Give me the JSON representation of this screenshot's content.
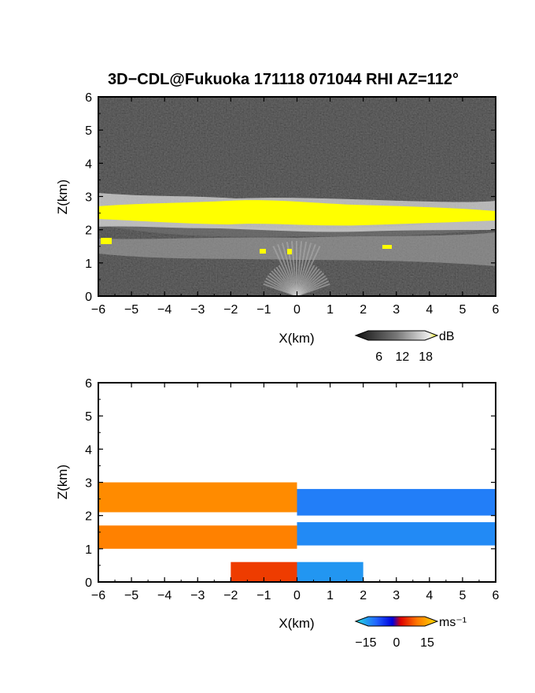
{
  "chart_data": [
    {
      "type": "heatmap",
      "title": "3D−CDL@Fukuoka 171118 071044 RHI AZ=112°",
      "xlabel": "X(km)",
      "ylabel": "Z(km)",
      "xlim": [
        -6,
        6
      ],
      "ylim": [
        0,
        6
      ],
      "xticks": [
        "−6",
        "−5",
        "−4",
        "−3",
        "−2",
        "−1",
        "0",
        "1",
        "2",
        "3",
        "4",
        "5",
        "6"
      ],
      "yticks": [
        "0",
        "1",
        "2",
        "3",
        "4",
        "5",
        "6"
      ],
      "colorbar": {
        "unit": "dB",
        "ticks": [
          "6",
          "12",
          "18"
        ],
        "range": [
          0,
          21
        ]
      },
      "layers": [
        {
          "name": "cloud layer",
          "x_range": [
            -6,
            6
          ],
          "z_range": [
            2.2,
            2.9
          ],
          "value": 20
        },
        {
          "name": "lower layer",
          "x_range": [
            -6,
            6
          ],
          "z_range": [
            1.0,
            1.8
          ],
          "value": 10
        },
        {
          "name": "near-ground return",
          "x_range": [
            -1.5,
            1.5
          ],
          "z_range": [
            0,
            0.6
          ],
          "value": 8
        }
      ]
    },
    {
      "type": "heatmap",
      "xlabel": "X(km)",
      "ylabel": "Z(km)",
      "xlim": [
        -6,
        6
      ],
      "ylim": [
        0,
        6
      ],
      "xticks": [
        "−6",
        "−5",
        "−4",
        "−3",
        "−2",
        "−1",
        "0",
        "1",
        "2",
        "3",
        "4",
        "5",
        "6"
      ],
      "yticks": [
        "0",
        "1",
        "2",
        "3",
        "4",
        "5",
        "6"
      ],
      "colorbar": {
        "unit": "ms⁻¹",
        "ticks": [
          "−15",
          "0",
          "15"
        ],
        "range": [
          -20,
          20
        ]
      },
      "regions": [
        {
          "name": "upper layer west",
          "x_range": [
            -6,
            0
          ],
          "z_range": [
            2.1,
            3.0
          ],
          "velocity": 12
        },
        {
          "name": "upper layer east",
          "x_range": [
            0,
            6
          ],
          "z_range": [
            2.0,
            2.8
          ],
          "velocity": -12
        },
        {
          "name": "lower layer west",
          "x_range": [
            -6,
            0
          ],
          "z_range": [
            1.0,
            1.7
          ],
          "velocity": 11
        },
        {
          "name": "lower layer east",
          "x_range": [
            0,
            6
          ],
          "z_range": [
            1.1,
            1.8
          ],
          "velocity": -13
        },
        {
          "name": "near-ground west",
          "x_range": [
            -2,
            0
          ],
          "z_range": [
            0,
            0.6
          ],
          "velocity": 6
        },
        {
          "name": "near-ground east",
          "x_range": [
            0,
            2
          ],
          "z_range": [
            0,
            0.6
          ],
          "velocity": -14
        }
      ]
    }
  ]
}
